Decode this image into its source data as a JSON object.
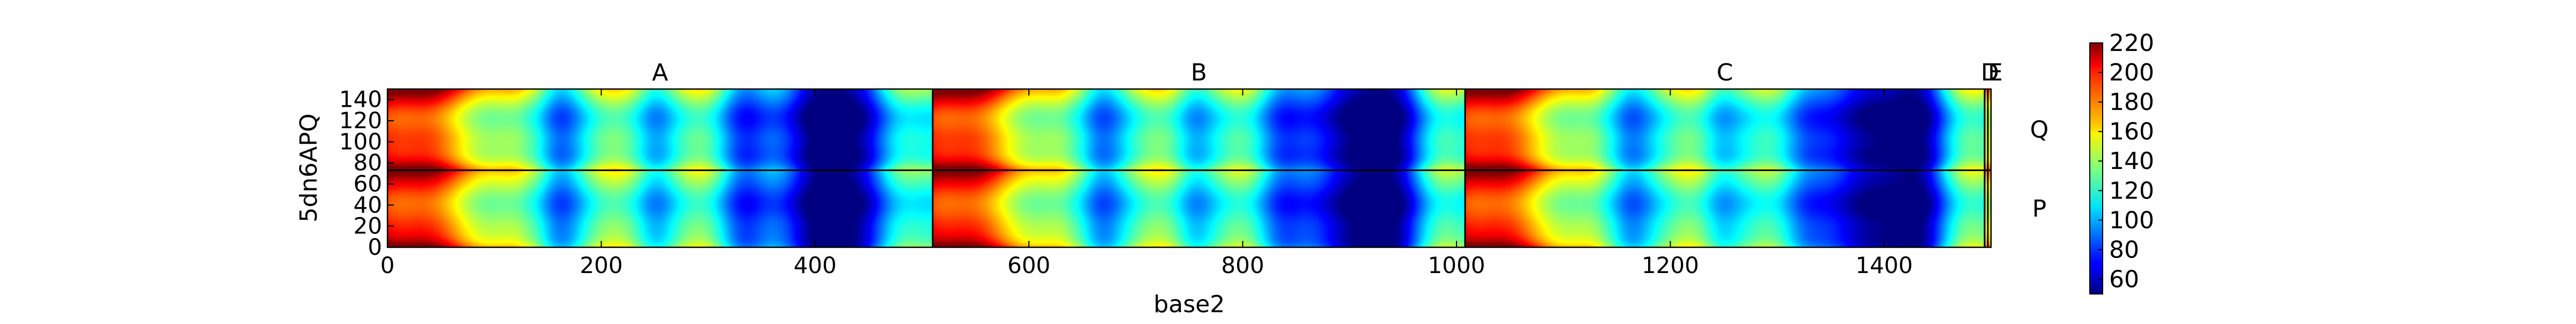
{
  "chart_data": {
    "type": "heatmap",
    "colormap": "jet",
    "xlabel": "base2",
    "ylabel": "5dn6APQ",
    "xlim": [
      0,
      1500
    ],
    "ylim": [
      0,
      150
    ],
    "xticks": [
      "0",
      "200",
      "400",
      "600",
      "800",
      "1000",
      "1200",
      "1400"
    ],
    "yticks": [
      "0",
      "20",
      "40",
      "60",
      "80",
      "100",
      "120",
      "140"
    ],
    "row_boundary": 73,
    "column_segments": [
      {
        "label": "A",
        "start": 0,
        "end": 510
      },
      {
        "label": "B",
        "start": 510,
        "end": 1008
      },
      {
        "label": "C",
        "start": 1008,
        "end": 1494
      },
      {
        "label": "D",
        "start": 1494,
        "end": 1497
      },
      {
        "label": "E",
        "start": 1497,
        "end": 1500
      }
    ],
    "row_segments": [
      {
        "label": "P",
        "start": 0,
        "end": 73
      },
      {
        "label": "Q",
        "start": 73,
        "end": 150
      }
    ],
    "colorbar": {
      "min": 50,
      "max": 220,
      "ticks": [
        "60",
        "80",
        "100",
        "120",
        "140",
        "160",
        "180",
        "200",
        "220"
      ]
    },
    "colors": {
      "low": "#00007f",
      "mid": "#7fff7f",
      "high": "#7f0000",
      "grid": "#000000"
    }
  }
}
